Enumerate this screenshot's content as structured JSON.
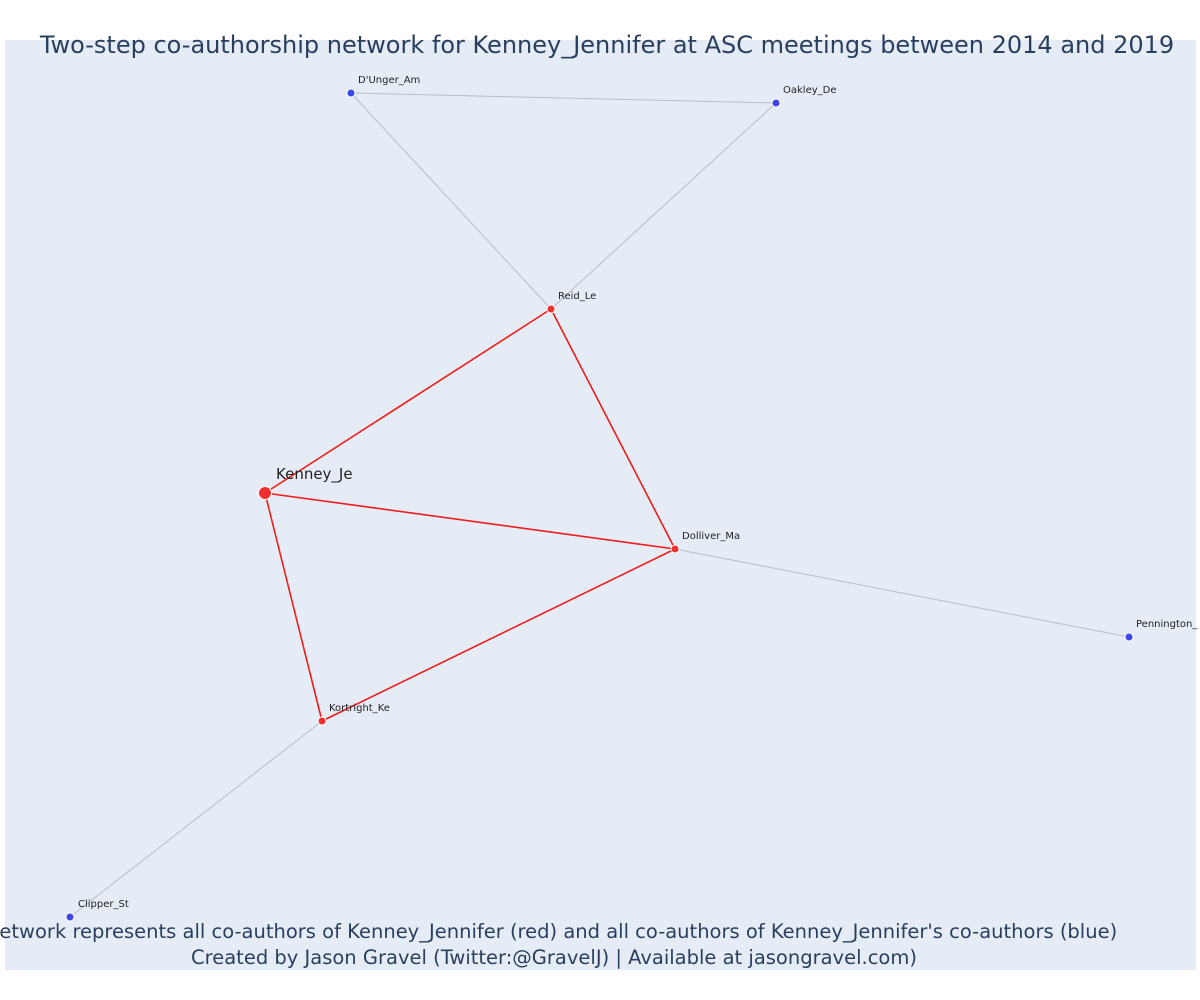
{
  "header": {
    "title": "Two-step co-authorship network for Kenney_Jennifer at ASC meetings between 2014 and 2019"
  },
  "footer": {
    "line1": "Network represents all co-authors of Kenney_Jennifer (red) and all co-authors of Kenney_Jennifer's co-authors (blue)",
    "line2": "Created by Jason Gravel (Twitter:@GravelJ) | Available at jasongravel.com)"
  },
  "colors": {
    "background": "#e5ecf6",
    "first_degree": "#ef2e2e",
    "second_degree": "#3d46e8",
    "primary_edge": "#ef1c1c",
    "secondary_edge": "#b8bccb",
    "title_text": "#2a3f5f"
  },
  "nodes": [
    {
      "id": "kenney",
      "label": "Kenney_Je",
      "group": "focal"
    },
    {
      "id": "reid",
      "label": "Reid_Le",
      "group": "first_degree"
    },
    {
      "id": "dolliver",
      "label": "Dolliver_Ma",
      "group": "first_degree"
    },
    {
      "id": "kortright",
      "label": "Kortright_Ke",
      "group": "first_degree"
    },
    {
      "id": "dunger",
      "label": "D'Unger_Am",
      "group": "second_degree"
    },
    {
      "id": "oakley",
      "label": "Oakley_De",
      "group": "second_degree"
    },
    {
      "id": "pennington",
      "label": "Pennington_",
      "group": "second_degree"
    },
    {
      "id": "clipper",
      "label": "Clipper_St",
      "group": "second_degree"
    }
  ],
  "edges": [
    {
      "source": "kenney",
      "target": "reid",
      "type": "primary"
    },
    {
      "source": "kenney",
      "target": "dolliver",
      "type": "primary"
    },
    {
      "source": "kenney",
      "target": "kortright",
      "type": "primary"
    },
    {
      "source": "reid",
      "target": "dolliver",
      "type": "primary"
    },
    {
      "source": "kortright",
      "target": "dolliver",
      "type": "primary"
    },
    {
      "source": "reid",
      "target": "dunger",
      "type": "secondary"
    },
    {
      "source": "reid",
      "target": "oakley",
      "type": "secondary"
    },
    {
      "source": "dunger",
      "target": "oakley",
      "type": "secondary"
    },
    {
      "source": "dolliver",
      "target": "pennington",
      "type": "secondary"
    },
    {
      "source": "kortright",
      "target": "clipper",
      "type": "secondary"
    }
  ]
}
